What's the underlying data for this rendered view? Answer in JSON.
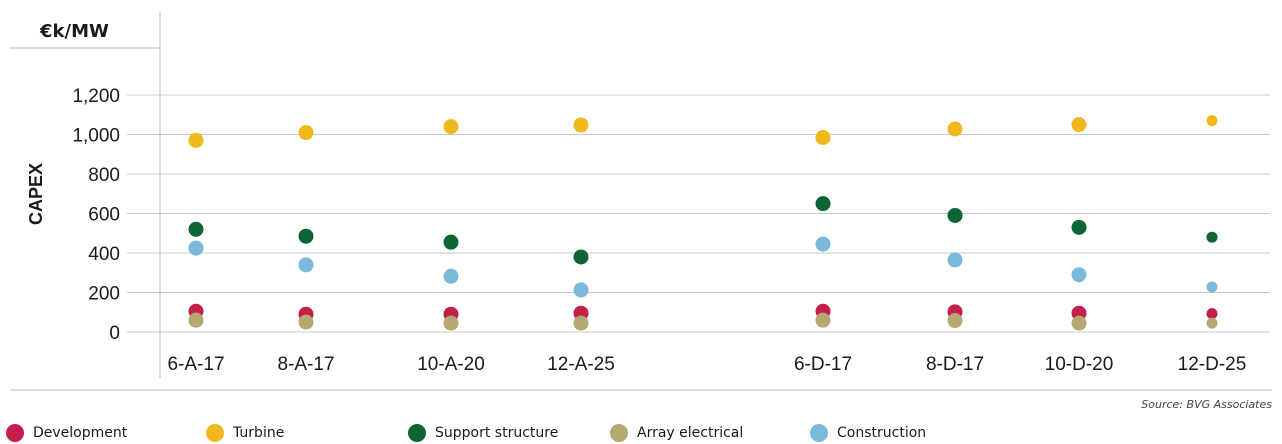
{
  "chart_data": {
    "type": "scatter",
    "unit_label": "€k/MW",
    "ylabel": "CAPEX",
    "xlabel": "",
    "ylim": [
      0,
      1200
    ],
    "yticks": [
      0,
      200,
      400,
      600,
      800,
      1000,
      1200
    ],
    "ytick_labels": [
      "0",
      "200",
      "400",
      "600",
      "800",
      "1,000",
      "1,200"
    ],
    "categories": [
      "6-A-17",
      "8-A-17",
      "10-A-20",
      "12-A-25",
      "6-D-17",
      "8-D-17",
      "10-D-20",
      "12-D-25"
    ],
    "grid": "horizontal",
    "legend_position": "bottom",
    "series": [
      {
        "name": "Development",
        "color": "#c41e4a",
        "values": [
          105,
          90,
          90,
          95,
          105,
          102,
          95,
          93
        ]
      },
      {
        "name": "Turbine",
        "color": "#f0b81c",
        "values": [
          970,
          1010,
          1040,
          1048,
          985,
          1028,
          1050,
          1070
        ]
      },
      {
        "name": "Support structure",
        "color": "#0d6534",
        "values": [
          520,
          485,
          455,
          380,
          650,
          590,
          530,
          480
        ]
      },
      {
        "name": "Array electrical",
        "color": "#b5a870",
        "values": [
          60,
          50,
          45,
          45,
          60,
          58,
          45,
          45
        ]
      },
      {
        "name": "Construction",
        "color": "#7ab8dc",
        "values": [
          425,
          340,
          282,
          213,
          445,
          365,
          290,
          228
        ]
      }
    ]
  },
  "source": "Source: BVG Associates"
}
